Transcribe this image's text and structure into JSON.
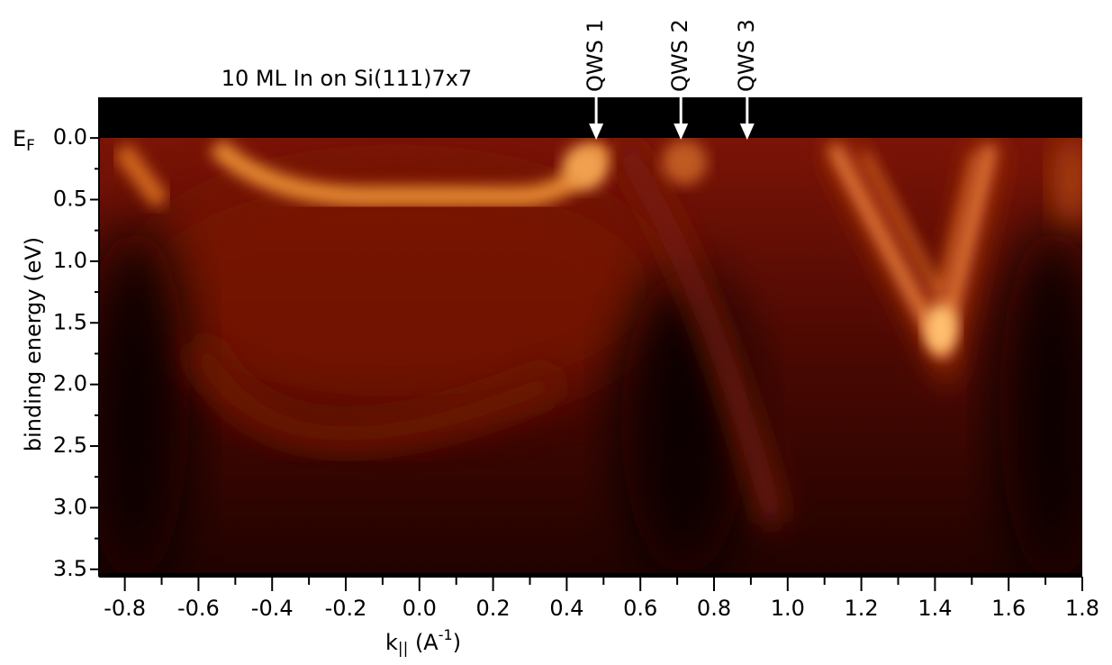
{
  "chart_data": {
    "type": "heatmap",
    "title": "10 ML In on Si(111)7x7",
    "xlabel": {
      "main": "k",
      "sub": "||",
      "unit_open": " (A",
      "unit_sup": "-1",
      "unit_close": ")"
    },
    "ylabel": "binding energy (eV)",
    "fermi_label": {
      "main": "E",
      "sub": "F"
    },
    "xlim": [
      -0.87,
      1.8
    ],
    "ylim": [
      -0.33,
      3.56
    ],
    "invert_y": true,
    "xticks": [
      -0.8,
      -0.6,
      -0.4,
      -0.2,
      {
        "value": 0,
        "label": "0.0"
      },
      0.2,
      0.4,
      0.6,
      0.8,
      {
        "value": 1,
        "label": "1.0"
      },
      1.2,
      1.4,
      1.6,
      1.8
    ],
    "xminorticks": [
      -0.7,
      -0.5,
      -0.3,
      -0.1,
      0.1,
      0.3,
      0.5,
      0.7,
      0.9,
      1.1,
      1.3,
      1.5,
      1.7
    ],
    "yticks": [
      {
        "value": 0,
        "label": "0.0"
      },
      0.5,
      {
        "value": 1,
        "label": "1.0"
      },
      1.5,
      {
        "value": 2,
        "label": "2.0"
      },
      2.5,
      {
        "value": 3,
        "label": "3.0"
      },
      3.5
    ],
    "yminorticks": [
      0.25,
      0.75,
      1.25,
      1.75,
      2.25,
      2.75,
      3.25
    ],
    "annotations": [
      {
        "text": "QWS 1",
        "x": 0.48
      },
      {
        "text": "QWS 2",
        "x": 0.71
      },
      {
        "text": "QWS 3",
        "x": 0.89
      }
    ]
  }
}
